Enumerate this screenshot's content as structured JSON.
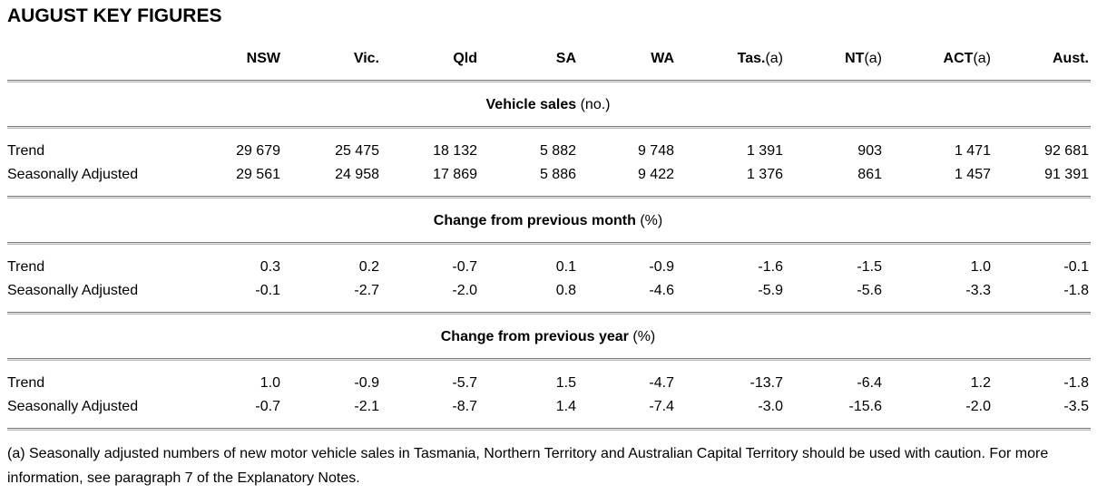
{
  "title": "AUGUST KEY FIGURES",
  "columns": [
    {
      "name": "NSW",
      "note": ""
    },
    {
      "name": "Vic.",
      "note": ""
    },
    {
      "name": "Qld",
      "note": ""
    },
    {
      "name": "SA",
      "note": ""
    },
    {
      "name": "WA",
      "note": ""
    },
    {
      "name": "Tas.",
      "note": "(a)"
    },
    {
      "name": "NT",
      "note": "(a)"
    },
    {
      "name": "ACT",
      "note": "(a)"
    },
    {
      "name": "Aust.",
      "note": ""
    }
  ],
  "sections": [
    {
      "heading": "Vehicle sales",
      "unit": "(no.)",
      "rows": [
        {
          "label": "Trend",
          "values": [
            "29 679",
            "25 475",
            "18 132",
            "5 882",
            "9 748",
            "1 391",
            "903",
            "1 471",
            "92 681"
          ]
        },
        {
          "label": "Seasonally Adjusted",
          "values": [
            "29 561",
            "24 958",
            "17 869",
            "5 886",
            "9 422",
            "1 376",
            "861",
            "1 457",
            "91 391"
          ]
        }
      ]
    },
    {
      "heading": "Change from previous month",
      "unit": "(%)",
      "rows": [
        {
          "label": "Trend",
          "values": [
            "0.3",
            "0.2",
            "-0.7",
            "0.1",
            "-0.9",
            "-1.6",
            "-1.5",
            "1.0",
            "-0.1"
          ]
        },
        {
          "label": "Seasonally Adjusted",
          "values": [
            "-0.1",
            "-2.7",
            "-2.0",
            "0.8",
            "-4.6",
            "-5.9",
            "-5.6",
            "-3.3",
            "-1.8"
          ]
        }
      ]
    },
    {
      "heading": "Change from previous year",
      "unit": "(%)",
      "rows": [
        {
          "label": "Trend",
          "values": [
            "1.0",
            "-0.9",
            "-5.7",
            "1.5",
            "-4.7",
            "-13.7",
            "-6.4",
            "1.2",
            "-1.8"
          ]
        },
        {
          "label": "Seasonally Adjusted",
          "values": [
            "-0.7",
            "-2.1",
            "-8.7",
            "1.4",
            "-7.4",
            "-3.0",
            "-15.6",
            "-2.0",
            "-3.5"
          ]
        }
      ]
    }
  ],
  "footnote": "(a) Seasonally adjusted numbers of new motor vehicle sales in Tasmania, Northern Territory and Australian Capital Territory should be used with caution. For more information, see paragraph 7 of the Explanatory Notes."
}
